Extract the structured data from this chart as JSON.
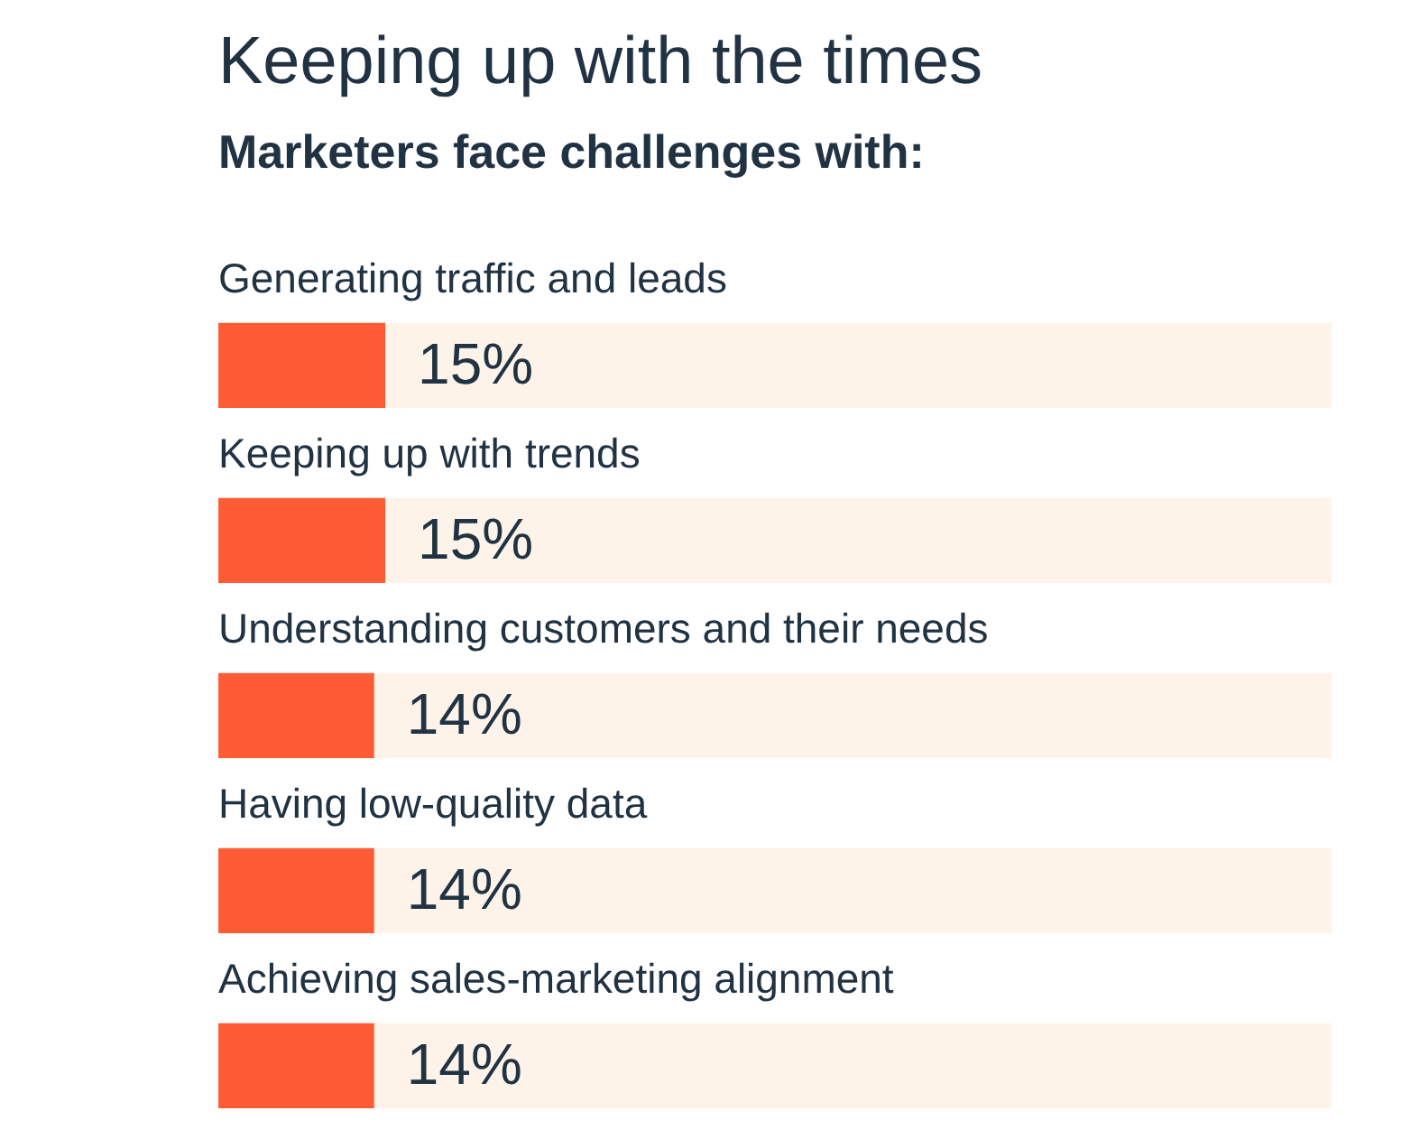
{
  "chart_data": {
    "type": "bar",
    "orientation": "horizontal",
    "title": "Keeping up with the times",
    "subtitle": "Marketers face challenges with:",
    "categories": [
      "Generating traffic and leads",
      "Keeping up with trends",
      "Understanding customers and their needs",
      "Having low-quality data",
      "Achieving sales-marketing alignment"
    ],
    "values": [
      15,
      15,
      14,
      14,
      14
    ],
    "value_labels": [
      "15%",
      "15%",
      "14%",
      "14%",
      "14%"
    ],
    "color": "#ff5c35",
    "xlim": [
      0,
      100
    ]
  }
}
